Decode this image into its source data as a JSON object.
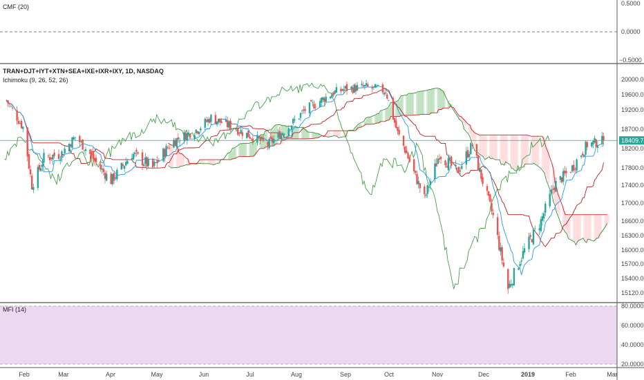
{
  "panes": {
    "cmf": {
      "label": "CMF (20)",
      "ticks": [
        "0.5000",
        "0.0000",
        "−0.5000"
      ]
    },
    "main": {
      "title": "TRAN+DJT+IYT+XTN+SEA+IXE+IXR+IXY, 1D, NASDAQ",
      "indicator": "Ichimoku (9, 26, 52, 26)",
      "ticks": [
        "20000.00",
        "19600.00",
        "19200.00",
        "18700.00",
        "18200.00",
        "17800.00",
        "17400.00",
        "17000.00",
        "16600.00",
        "16300.00",
        "16000.00",
        "15700.00",
        "15400.00",
        "15120.00"
      ],
      "last_price": "18409.72"
    },
    "mfi": {
      "label": "MFI (14)",
      "ticks": [
        "80.0000",
        "60.0000",
        "40.0000",
        "20.0000"
      ]
    }
  },
  "x_axis_labels": [
    "Feb",
    "Mar",
    "Apr",
    "May",
    "Jun",
    "Jul",
    "Aug",
    "Sep",
    "Oct",
    "Nov",
    "Dec",
    "2019",
    "Feb",
    "Mar"
  ],
  "colors": {
    "up": "#26a69a",
    "down": "#ef5350",
    "tenkan": "#2196f3",
    "kijun": "#b71c1c",
    "chikou": "#43a047",
    "span_a": "#388e3c",
    "span_b": "#c62828",
    "cloud_bull": "#a5d6a7",
    "cloud_bear": "#ffcdd2",
    "mfi_band": "#e1bee7",
    "price_line": "#26a69a"
  },
  "chart_data": {
    "type": "candlestick",
    "symbol": "TRAN+DJT+IYT+XTN+SEA+IXE+IXR+IXY",
    "interval": "1D",
    "exchange": "NASDAQ",
    "ylim": [
      15000,
      20150
    ],
    "last_close": 18409.72,
    "series": [
      {
        "name": "close",
        "points": [
          [
            "2018-01-22",
            19450
          ],
          [
            "2018-02-02",
            18750
          ],
          [
            "2018-02-08",
            17400
          ],
          [
            "2018-02-16",
            18000
          ],
          [
            "2018-02-28",
            18100
          ],
          [
            "2018-03-09",
            18500
          ],
          [
            "2018-03-22",
            17950
          ],
          [
            "2018-04-02",
            17500
          ],
          [
            "2018-04-16",
            18100
          ],
          [
            "2018-04-30",
            17800
          ],
          [
            "2018-05-14",
            18400
          ],
          [
            "2018-05-30",
            18700
          ],
          [
            "2018-06-08",
            19000
          ],
          [
            "2018-06-25",
            18700
          ],
          [
            "2018-07-03",
            18550
          ],
          [
            "2018-07-16",
            18300
          ],
          [
            "2018-07-31",
            18800
          ],
          [
            "2018-08-10",
            19200
          ],
          [
            "2018-08-29",
            19650
          ],
          [
            "2018-09-06",
            19750
          ],
          [
            "2018-09-19",
            19800
          ],
          [
            "2018-10-03",
            19700
          ],
          [
            "2018-10-11",
            18600
          ],
          [
            "2018-10-29",
            17100
          ],
          [
            "2018-11-08",
            18100
          ],
          [
            "2018-11-20",
            17700
          ],
          [
            "2018-11-30",
            18300
          ],
          [
            "2018-12-06",
            17600
          ],
          [
            "2018-12-14",
            16700
          ],
          [
            "2018-12-24",
            15200
          ],
          [
            "2019-01-04",
            16000
          ],
          [
            "2019-01-15",
            16600
          ],
          [
            "2019-01-24",
            17400
          ],
          [
            "2019-02-05",
            17800
          ],
          [
            "2019-02-15",
            18300
          ],
          [
            "2019-02-26",
            18410
          ]
        ]
      }
    ]
  }
}
